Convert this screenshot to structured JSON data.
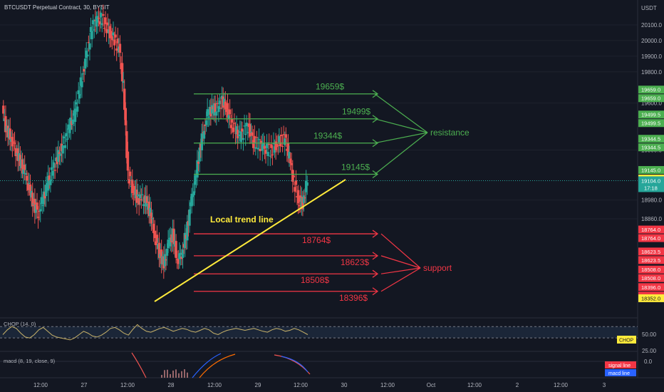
{
  "header": {
    "title": "BTCUSDT Perpetual Contract, 30, BYBIT",
    "currency": "USDT"
  },
  "colors": {
    "background": "#131722",
    "up": "#26a69a",
    "down": "#ef5350",
    "resistance": "#4caf50",
    "support": "#f23645",
    "trend": "#ffeb3b",
    "current_price": "#26a69a",
    "chop": "#c9b36a",
    "macd": "#2962ff",
    "signal": "#ff6d00"
  },
  "chart_data": {
    "type": "line",
    "title": "BTCUSDT Perpetual Contract, 30, BYBIT",
    "y_unit": "USDT",
    "ylim": [
      18340,
      20180
    ],
    "yticks": [
      {
        "value": 20100,
        "label": "20100.0"
      },
      {
        "value": 20000,
        "label": "20000.0"
      },
      {
        "value": 19900,
        "label": "19900.0"
      },
      {
        "value": 19800,
        "label": "19800.0"
      },
      {
        "value": 19600,
        "label": "19600.0"
      },
      {
        "value": 19300,
        "label": "19300.0"
      },
      {
        "value": 18980,
        "label": "18980.0"
      },
      {
        "value": 18860,
        "label": "18860.0"
      }
    ],
    "xticks": [
      "12:00",
      "27",
      "12:00",
      "28",
      "12:00",
      "29",
      "12:00",
      "30",
      "12:00",
      "Oct",
      "12:00",
      "2",
      "12:00",
      "3"
    ],
    "close_series": [
      19550,
      19420,
      19380,
      19300,
      19220,
      19150,
      19050,
      18950,
      18900,
      18980,
      19080,
      19150,
      19230,
      19300,
      19370,
      19450,
      19520,
      19650,
      19800,
      19950,
      20080,
      20130,
      20140,
      20100,
      20050,
      20000,
      19950,
      19700,
      19150,
      19050,
      19000,
      18980,
      18970,
      18900,
      18750,
      18650,
      18560,
      18700,
      18760,
      18600,
      18640,
      18760,
      18950,
      19100,
      19300,
      19450,
      19550,
      19560,
      19560,
      19620,
      19560,
      19480,
      19420,
      19390,
      19420,
      19450,
      19350,
      19340,
      19320,
      19300,
      19300,
      19330,
      19360,
      19370,
      19250,
      19100,
      18980,
      18960,
      19104
    ],
    "resistance_levels": [
      {
        "value": 19659,
        "label": "19659$",
        "axis_label": "19659.0"
      },
      {
        "value": 19499.5,
        "label": "19499$",
        "axis_label": "19499.5"
      },
      {
        "value": 19344.5,
        "label": "19344$",
        "axis_label": "19344.5"
      },
      {
        "value": 19145,
        "label": "19145$",
        "axis_label": "19145.0"
      }
    ],
    "support_levels": [
      {
        "value": 18764,
        "label": "18764$",
        "axis_label": "18764.0"
      },
      {
        "value": 18623.5,
        "label": "18623$",
        "axis_label": "18623.5"
      },
      {
        "value": 18508,
        "label": "18508$",
        "axis_label": "18508.0"
      },
      {
        "value": 18396,
        "label": "18396$",
        "axis_label": "18396.0"
      }
    ],
    "trend_line": {
      "label": "Local trend line",
      "start": {
        "x": 36,
        "y": 18340
      },
      "end": {
        "x": 80,
        "y": 19110
      }
    },
    "annotations": {
      "resistance": "resistance",
      "support": "support"
    },
    "current_price": {
      "value": 19104,
      "label": "19104.0",
      "countdown": "17:18"
    },
    "extra_axis_labels": [
      {
        "value": 19117.5,
        "label": "19117.5",
        "color": "#ffeb3b",
        "text_color": "#131722"
      },
      {
        "value": 18352,
        "label": "18352.0",
        "color": "#ffeb3b",
        "text_color": "#131722"
      }
    ]
  },
  "indicators": {
    "chop": {
      "label": "CHOP (14, 0)",
      "badge": "CHOP",
      "ticks": [
        "50.00",
        "25.00"
      ],
      "upper": 61.8,
      "lower": 38.2,
      "values": [
        45,
        55,
        62,
        58,
        48,
        40,
        38,
        45,
        55,
        60,
        52,
        44,
        40,
        38,
        36,
        34,
        38,
        45,
        52,
        48,
        42,
        40,
        44,
        50,
        58,
        60,
        55,
        48,
        44,
        56,
        66,
        58,
        52,
        50,
        54,
        58,
        60,
        56,
        52,
        55,
        58,
        56,
        52,
        50,
        54,
        58,
        55,
        48,
        45,
        50,
        54,
        56,
        58,
        56,
        54,
        56,
        58,
        55,
        52,
        50,
        55,
        58,
        56,
        52,
        54,
        58,
        55,
        50,
        45
      ]
    },
    "macd": {
      "label": "macd (8, 19, close, 9)",
      "tick": "0.0",
      "legend": [
        "signal line",
        "macd line"
      ]
    }
  }
}
